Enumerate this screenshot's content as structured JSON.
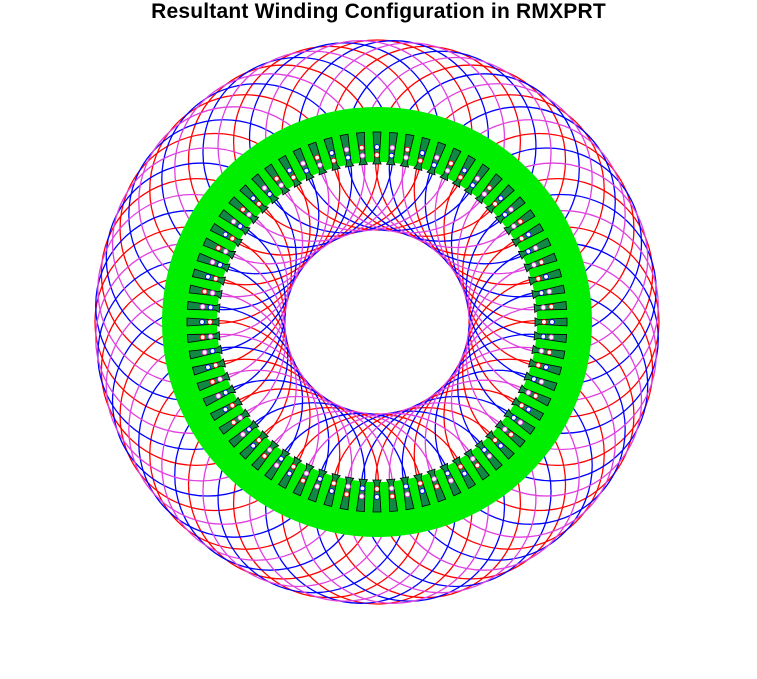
{
  "title": "Resultant Winding Configuration in RMXPRT",
  "diagram": {
    "slot_count": 72,
    "coils_per_phase": 24,
    "phases": [
      {
        "color": "#ff0000"
      },
      {
        "color": "#0000ff"
      },
      {
        "color": "#e040e0"
      }
    ],
    "core_color": "#00ee00",
    "tooth_color": "#118844",
    "tooth_outline": "#000000",
    "label_color": "#2b2bff"
  }
}
